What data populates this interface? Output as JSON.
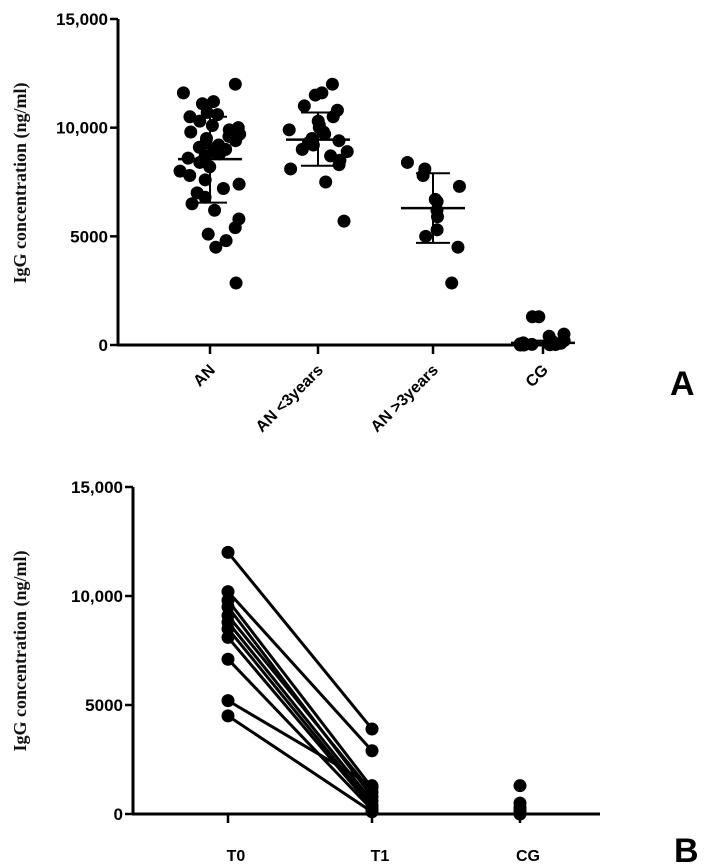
{
  "chart_data": [
    {
      "type": "scatter",
      "panel_label": "A",
      "ylabel": "IgG concentration (ng/ml)",
      "categories": [
        "AN",
        "AN <3years",
        "AN >3years",
        "CG"
      ],
      "ylim": [
        0,
        15000
      ],
      "yticks": [
        0,
        5000,
        10000,
        15000
      ],
      "ytick_labels": [
        "0",
        "5000",
        "10,000",
        "15,000"
      ],
      "grid": false,
      "legend": "none",
      "groups": [
        {
          "category": "AN",
          "mean": 8550,
          "sd_low": 6550,
          "sd_high": 10500,
          "values": [
            12000,
            11600,
            11200,
            11100,
            10700,
            10600,
            10500,
            10300,
            10100,
            10000,
            9900,
            9800,
            9700,
            9600,
            9500,
            9400,
            9300,
            9200,
            9100,
            9000,
            8900,
            8800,
            8700,
            8600,
            8400,
            8200,
            8000,
            7800,
            7600,
            7400,
            7200,
            7000,
            6800,
            6500,
            6200,
            5800,
            5400,
            5100,
            4800,
            4500,
            2850
          ]
        },
        {
          "category": "AN <3years",
          "mean": 9450,
          "sd_low": 8250,
          "sd_high": 10700,
          "values": [
            12000,
            11600,
            11500,
            11000,
            10800,
            10500,
            10300,
            10100,
            10000,
            9900,
            9800,
            9700,
            9500,
            9400,
            9300,
            9200,
            9000,
            8900,
            8700,
            8500,
            8300,
            8100,
            7500,
            5700
          ]
        },
        {
          "category": "AN >3years",
          "mean": 6300,
          "sd_low": 4700,
          "sd_high": 7900,
          "values": [
            8400,
            8100,
            7800,
            7300,
            6700,
            6600,
            6200,
            5900,
            5300,
            5000,
            4500,
            2850
          ]
        },
        {
          "category": "CG",
          "mean": 100,
          "sd_low": 0,
          "sd_high": 200,
          "values": [
            1300,
            1300,
            500,
            400,
            200,
            150,
            100,
            80,
            50,
            30,
            20,
            10,
            0,
            0
          ]
        }
      ]
    },
    {
      "type": "line",
      "panel_label": "B",
      "ylabel": "IgG concentration (ng/ml)",
      "categories": [
        "T0",
        "T1",
        "CG"
      ],
      "ylim": [
        0,
        15000
      ],
      "yticks": [
        0,
        5000,
        10000,
        15000
      ],
      "ytick_labels": [
        "0",
        "5000",
        "10,000",
        "15,000"
      ],
      "grid": false,
      "legend": "none",
      "paired": [
        {
          "t0": 12000,
          "t1": 3900
        },
        {
          "t0": 10200,
          "t1": 2900
        },
        {
          "t0": 9800,
          "t1": 1200
        },
        {
          "t0": 9500,
          "t1": 800
        },
        {
          "t0": 9100,
          "t1": 1000
        },
        {
          "t0": 8800,
          "t1": 600
        },
        {
          "t0": 8500,
          "t1": 400
        },
        {
          "t0": 8100,
          "t1": 300
        },
        {
          "t0": 7100,
          "t1": 200
        },
        {
          "t0": 5200,
          "t1": 1300
        },
        {
          "t0": 4500,
          "t1": 100
        }
      ],
      "cg_values": [
        1300,
        500,
        300,
        200,
        100,
        0
      ]
    }
  ]
}
